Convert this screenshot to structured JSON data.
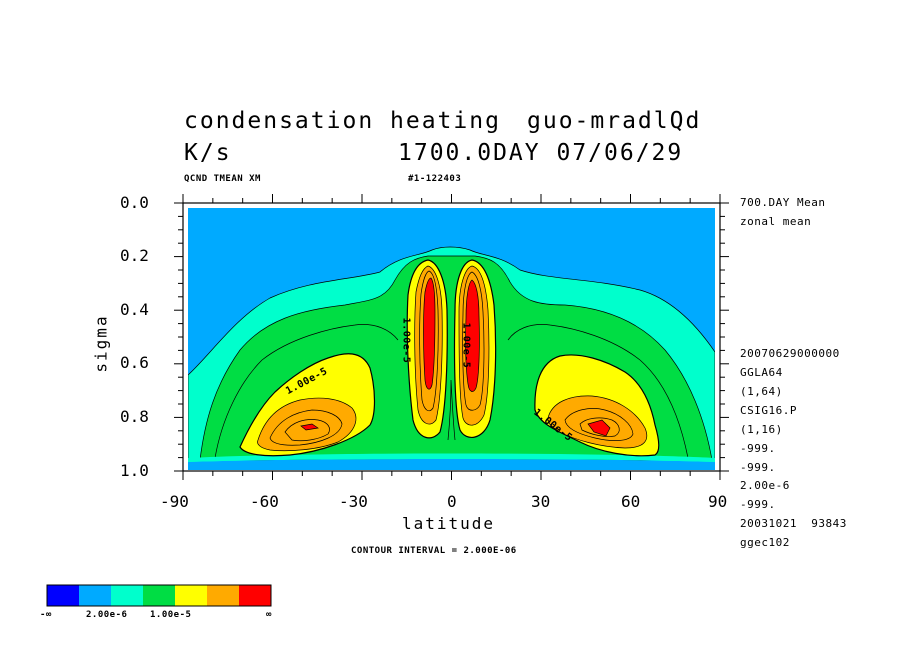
{
  "header": {
    "title_line1": "condensation heating",
    "title_overlap": "guo-mradlQd",
    "units": "K/s",
    "date_line": "1700.0DAY 07/06/29",
    "var_label": "QCND TMEAN XM",
    "run_id": "#1-122403"
  },
  "side_info": [
    "700.DAY Mean",
    "zonal mean",
    "20070629000000",
    "GGLA64",
    "(1,64)",
    "CSIG16.P",
    "(1,16)",
    "-999.",
    "-999.",
    "2.00e-6",
    "-999.",
    "20031021  93843",
    "ggec102"
  ],
  "contour_interval": "CONTOUR INTERVAL = 2.000E-06",
  "colorbar": {
    "colors": [
      "#0000ff",
      "#00aaff",
      "#00ffcc",
      "#00dd44",
      "#ffff00",
      "#ffaa00",
      "#ff0000"
    ],
    "labels": [
      "-∞",
      "2.00e-6",
      "1.00e-5",
      "∞"
    ]
  },
  "chart_data": {
    "type": "contour",
    "title": "condensation heating",
    "xlabel": "latitude",
    "ylabel": "sigma",
    "xlim": [
      -90,
      90
    ],
    "ylim": [
      1.0,
      0.0
    ],
    "xticks": [
      -90,
      -60,
      -30,
      0,
      30,
      60,
      90
    ],
    "xtick_labels": [
      "-90",
      "-60",
      "-30",
      "0",
      "30",
      "60",
      "90"
    ],
    "yticks": [
      0.0,
      0.2,
      0.4,
      0.6,
      0.8,
      1.0
    ],
    "ytick_labels": [
      "0.0",
      "0.2",
      "0.4",
      "0.6",
      "0.8",
      "1.0"
    ],
    "contour_interval": 2e-06,
    "levels": [
      2e-06,
      4e-06,
      6e-06,
      8e-06,
      1e-05,
      1.2e-05,
      1.4e-05
    ],
    "contour_labels": [
      "1.00e-5",
      "1.00e-5",
      "1.00e-5",
      "1.00e-5"
    ],
    "features": [
      {
        "name": "southern midlatitude maximum",
        "lat": -47,
        "sigma": 0.84
      },
      {
        "name": "northern midlatitude maximum",
        "lat": 48,
        "sigma": 0.85
      },
      {
        "name": "southern tropical maximum",
        "lat": -6,
        "sigma": 0.45
      },
      {
        "name": "northern tropical maximum",
        "lat": 6,
        "sigma": 0.48
      }
    ],
    "grid": false
  }
}
